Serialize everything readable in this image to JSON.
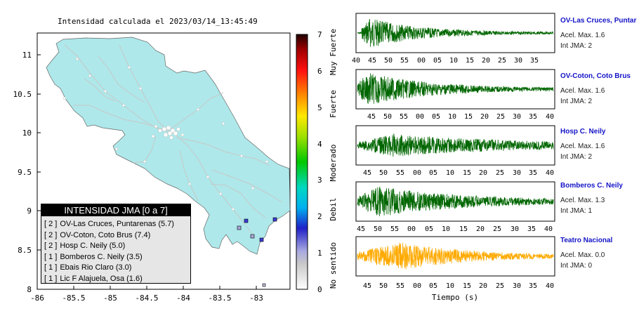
{
  "map": {
    "title_prefix": "Intensidad calculada el",
    "datetime": "2023/03/14_13:45:49",
    "x_ticks": [
      "-86",
      "-85.5",
      "-85",
      "-84.5",
      "-84",
      "-83.5",
      "-83"
    ],
    "y_ticks": [
      "11",
      "10.5",
      "10",
      "9.5",
      "9",
      "8.5",
      "8"
    ],
    "legend_title": "INTENSIDAD JMA [0 a 7]",
    "legend_rows": [
      {
        "level": "[ 2 ]",
        "text": "OV-Las Cruces, Puntarenas (5.7)"
      },
      {
        "level": "[ 2 ]",
        "text": "OV-Coton, Coto Brus (7.4)"
      },
      {
        "level": "[ 2 ]",
        "text": "Hosp C. Neily (5.0)"
      },
      {
        "level": "[ 1 ]",
        "text": "Bomberos C. Neily (3.5)"
      },
      {
        "level": "[ 1 ]",
        "text": "Ebais Rio Claro (3.0)"
      },
      {
        "level": "[ 1 ]",
        "text": "Lic F Alajuela, Osa (1.6)"
      }
    ],
    "colors": {
      "land": "#aee8ea",
      "sea": "#ffffff",
      "roads": "#c8c8c8"
    }
  },
  "colorbar": {
    "ticks": [
      "0",
      "1",
      "2",
      "3",
      "4",
      "5",
      "6",
      "7"
    ],
    "labels": [
      "No sentido",
      "Debil",
      "Moderado",
      "Fuerte",
      "Muy Fuerte"
    ]
  },
  "traces": [
    {
      "station": "OV-Las Cruces, Puntar",
      "accel": "Acel. Max. 1.6",
      "jma": "Int JMA: 2",
      "color": "#006600",
      "ticks": [
        "40",
        "45",
        "50",
        "55",
        "00",
        "05",
        "10",
        "15",
        "20",
        "25",
        "30",
        "35"
      ]
    },
    {
      "station": "OV-Coton, Coto Brus",
      "accel": "Acel. Max. 1.6",
      "jma": "Int JMA: 2",
      "color": "#006600",
      "ticks": [
        "45",
        "50",
        "55",
        "00",
        "05",
        "10",
        "15",
        "20",
        "25",
        "30",
        "35",
        "40"
      ]
    },
    {
      "station": "Hosp C. Neily",
      "accel": "Acel. Max. 1.6",
      "jma": "Int JMA: 2",
      "color": "#006600",
      "ticks": [
        "45",
        "50",
        "55",
        "00",
        "05",
        "10",
        "15",
        "20",
        "25",
        "30",
        "35",
        "40"
      ]
    },
    {
      "station": "Bomberos C. Neily",
      "accel": "Acel. Max. 1.3",
      "jma": "Int JMA: 1",
      "color": "#006600",
      "ticks": [
        "45",
        "50",
        "55",
        "00",
        "05",
        "10",
        "15",
        "20",
        "25",
        "30",
        "35",
        "40"
      ]
    },
    {
      "station": "Teatro Nacional",
      "accel": "Acel. Max. 0.0",
      "jma": "Int JMA: 0",
      "color": "#ffaa00",
      "ticks": [
        "45",
        "50",
        "55",
        "00",
        "05",
        "10",
        "15",
        "20",
        "25",
        "30",
        "35",
        "40"
      ]
    }
  ],
  "time_label": "Tiempo (s)"
}
